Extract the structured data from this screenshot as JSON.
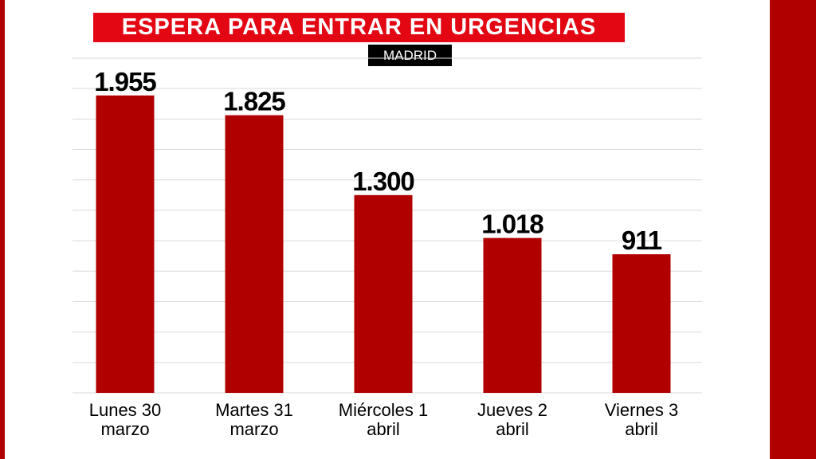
{
  "header": {
    "title": "ESPERA PARA ENTRAR EN URGENCIAS",
    "subtitle": "MADRID"
  },
  "colors": {
    "bar": "#b10000",
    "title_bg": "#e30613",
    "accent": "#b10000",
    "grid": "#d9d9d9"
  },
  "chart_data": {
    "type": "bar",
    "title": "ESPERA PARA ENTRAR EN URGENCIAS",
    "subtitle": "MADRID",
    "categories": [
      [
        "Lunes 30",
        "marzo"
      ],
      [
        "Martes 31",
        "marzo"
      ],
      [
        "Miércoles 1",
        "abril"
      ],
      [
        "Jueves 2",
        "abril"
      ],
      [
        "Viernes 3",
        "abril"
      ]
    ],
    "values": [
      1955,
      1825,
      1300,
      1018,
      911
    ],
    "value_labels": [
      "1.955",
      "1.825",
      "1.300",
      "1.018",
      "911"
    ],
    "ylim": [
      0,
      2200
    ],
    "grid": true,
    "xlabel": "",
    "ylabel": ""
  }
}
